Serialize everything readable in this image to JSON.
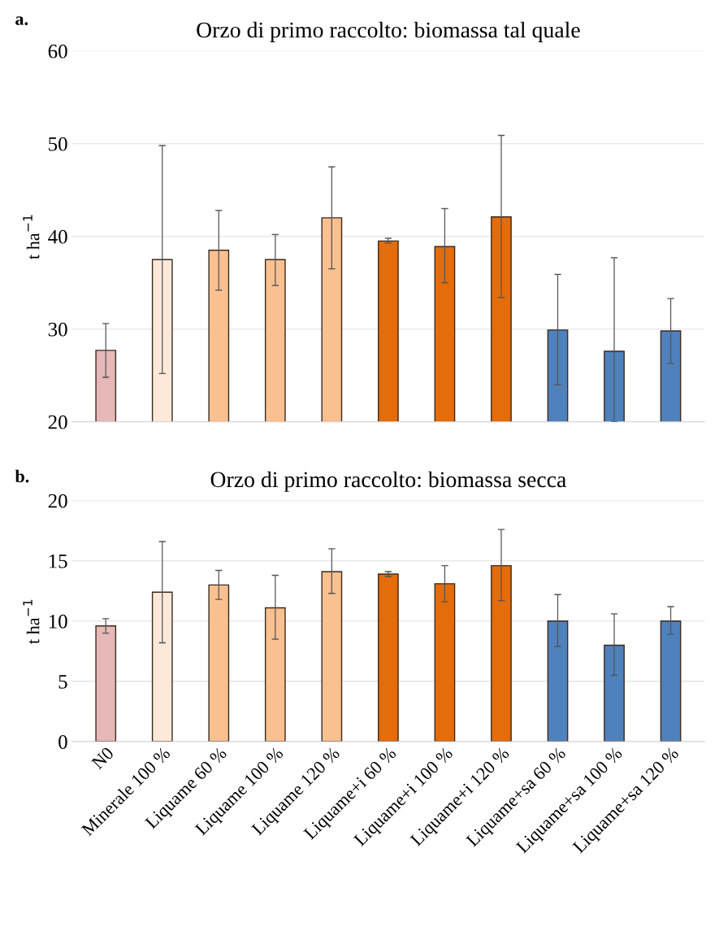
{
  "chart_data": [
    {
      "type": "bar",
      "title": "Orzo di primo raccolto: biomassa tal quale",
      "ylabel": "t ha$^{−1}$",
      "annotations": [
        "a."
      ],
      "categories": [
        null,
        null,
        null,
        null,
        null,
        null,
        null,
        null,
        null,
        null,
        null
      ],
      "values": [
        27.7,
        37.5,
        38.5,
        37.5,
        42.0,
        39.5,
        38.9,
        42.1,
        29.9,
        27.6,
        29.8
      ],
      "errors": [
        [
          24.8,
          30.6
        ],
        [
          25.2,
          49.8
        ],
        [
          34.2,
          42.8
        ],
        [
          34.7,
          40.2
        ],
        [
          36.5,
          47.5
        ],
        [
          39.3,
          39.8
        ],
        [
          35.0,
          43.0
        ],
        [
          33.4,
          50.9
        ],
        [
          24.0,
          35.9
        ],
        [
          20.0,
          37.7
        ],
        [
          26.3,
          33.3
        ]
      ],
      "colors": [
        "#e6b8b7",
        "#fde9d9",
        "#fac090",
        "#fac090",
        "#fac090",
        "#e46c0a",
        "#e46c0a",
        "#e46c0a",
        "#4f81bd",
        "#4f81bd",
        "#4f81bd"
      ],
      "ylim": [
        20,
        60
      ],
      "yticks": [
        20,
        30,
        40,
        50,
        60
      ],
      "grid": "y",
      "tick_labels": "y"
    },
    {
      "type": "bar",
      "title": "Orzo di primo raccolto: biomassa secca",
      "ylabel": "t ha$^{−1}$",
      "annotations": [
        "b."
      ],
      "categories": [
        "N0",
        "Minerale 100 %",
        "Liquame 60 %",
        "Liquame 100 %",
        "Liquame 120 %",
        "Liquame+i 60 %",
        "Liquame+i 100 %",
        "Liquame+i 120 %",
        "Liquame+sa 60 %",
        "Liquame+sa 100 %",
        "Liquame+sa 120 %"
      ],
      "values": [
        9.6,
        12.4,
        13.0,
        11.1,
        14.1,
        13.9,
        13.1,
        14.6,
        10.0,
        8.0,
        10.0
      ],
      "errors": [
        [
          9.0,
          10.2
        ],
        [
          8.2,
          16.6
        ],
        [
          11.8,
          14.2
        ],
        [
          8.5,
          13.8
        ],
        [
          12.3,
          16.0
        ],
        [
          13.7,
          14.1
        ],
        [
          11.6,
          14.6
        ],
        [
          11.7,
          17.6
        ],
        [
          7.9,
          12.2
        ],
        [
          5.5,
          10.6
        ],
        [
          8.9,
          11.2
        ]
      ],
      "colors": [
        "#e6b8b7",
        "#fde9d9",
        "#fac090",
        "#fac090",
        "#fac090",
        "#e46c0a",
        "#e46c0a",
        "#e46c0a",
        "#4f81bd",
        "#4f81bd",
        "#4f81bd"
      ],
      "ylim": [
        0,
        20
      ],
      "yticks": [
        0,
        5,
        10,
        15,
        20
      ],
      "grid": "y"
    }
  ]
}
